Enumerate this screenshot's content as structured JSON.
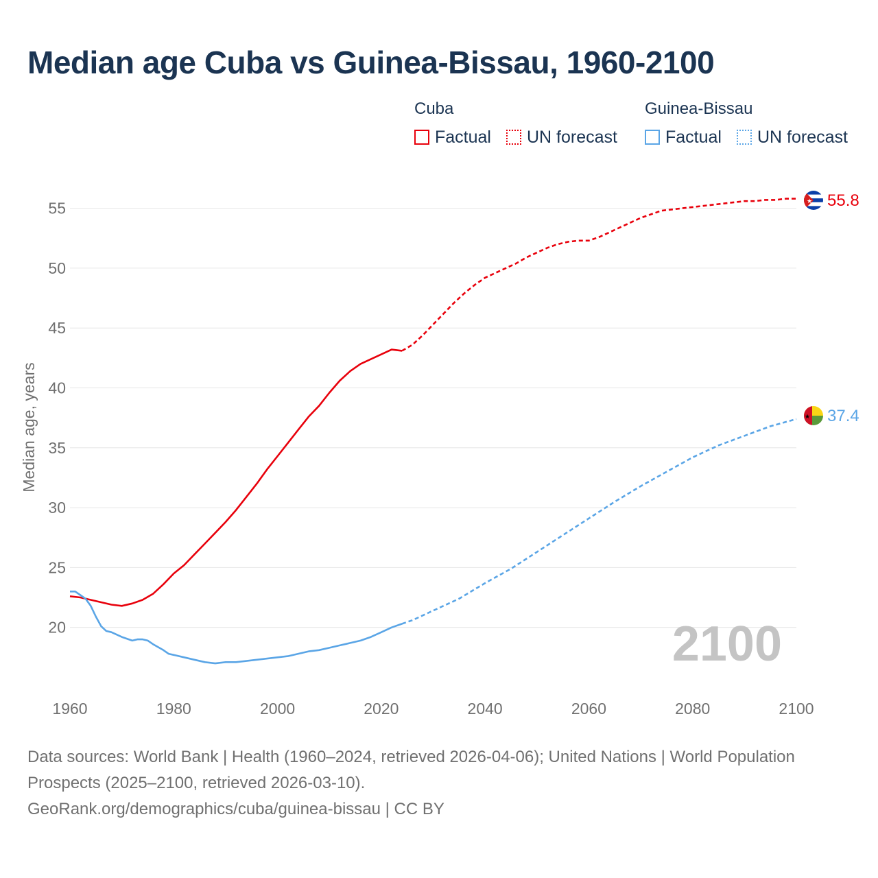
{
  "title": "Median age Cuba vs Guinea-Bissau, 1960-2100",
  "legend": {
    "groups": [
      {
        "name": "Cuba",
        "factual": "Factual",
        "forecast": "UN forecast",
        "color": "#e8000b"
      },
      {
        "name": "Guinea-Bissau",
        "factual": "Factual",
        "forecast": "UN forecast",
        "color": "#5aa5e6"
      }
    ]
  },
  "year_watermark": "2100",
  "footer": {
    "line1": "Data sources: World Bank | Health (1960–2024, retrieved 2026-04-06); United Nations | World Population Prospects (2025–2100, retrieved 2026-03-10).",
    "line2": "GeoRank.org/demographics/cuba/guinea-bissau | CC BY"
  },
  "chart_data": {
    "type": "line",
    "title": "Median age Cuba vs Guinea-Bissau, 1960-2100",
    "xlabel": "",
    "ylabel": "Median age, years",
    "xlim": [
      1960,
      2100
    ],
    "ylim": [
      15.8,
      57.5
    ],
    "x_ticks": [
      1960,
      1980,
      2000,
      2020,
      2040,
      2060,
      2080,
      2100
    ],
    "y_ticks": [
      20,
      25,
      30,
      35,
      40,
      45,
      50,
      55
    ],
    "factual_end_year": 2024,
    "series": [
      {
        "name": "Cuba",
        "color": "#e8000b",
        "end_label": "55.8",
        "flag_icon": "cuba-flag-icon",
        "points": [
          [
            1960,
            22.6
          ],
          [
            1962,
            22.5
          ],
          [
            1964,
            22.3
          ],
          [
            1966,
            22.1
          ],
          [
            1968,
            21.9
          ],
          [
            1970,
            21.8
          ],
          [
            1972,
            22.0
          ],
          [
            1974,
            22.3
          ],
          [
            1976,
            22.8
          ],
          [
            1978,
            23.6
          ],
          [
            1980,
            24.5
          ],
          [
            1982,
            25.2
          ],
          [
            1984,
            26.1
          ],
          [
            1986,
            27.0
          ],
          [
            1988,
            27.9
          ],
          [
            1990,
            28.8
          ],
          [
            1992,
            29.8
          ],
          [
            1994,
            30.9
          ],
          [
            1996,
            32.0
          ],
          [
            1998,
            33.2
          ],
          [
            2000,
            34.3
          ],
          [
            2002,
            35.4
          ],
          [
            2004,
            36.5
          ],
          [
            2006,
            37.6
          ],
          [
            2008,
            38.5
          ],
          [
            2010,
            39.6
          ],
          [
            2012,
            40.6
          ],
          [
            2014,
            41.4
          ],
          [
            2016,
            42.0
          ],
          [
            2018,
            42.4
          ],
          [
            2020,
            42.8
          ],
          [
            2022,
            43.2
          ],
          [
            2024,
            43.1
          ],
          [
            2026,
            43.6
          ],
          [
            2028,
            44.4
          ],
          [
            2030,
            45.3
          ],
          [
            2032,
            46.2
          ],
          [
            2034,
            47.1
          ],
          [
            2036,
            47.9
          ],
          [
            2038,
            48.6
          ],
          [
            2040,
            49.2
          ],
          [
            2042,
            49.6
          ],
          [
            2044,
            50.0
          ],
          [
            2046,
            50.4
          ],
          [
            2048,
            50.9
          ],
          [
            2050,
            51.3
          ],
          [
            2052,
            51.7
          ],
          [
            2054,
            52.0
          ],
          [
            2056,
            52.2
          ],
          [
            2058,
            52.3
          ],
          [
            2060,
            52.3
          ],
          [
            2062,
            52.6
          ],
          [
            2064,
            53.0
          ],
          [
            2066,
            53.4
          ],
          [
            2068,
            53.8
          ],
          [
            2070,
            54.2
          ],
          [
            2072,
            54.5
          ],
          [
            2074,
            54.8
          ],
          [
            2076,
            54.9
          ],
          [
            2078,
            55.0
          ],
          [
            2080,
            55.1
          ],
          [
            2082,
            55.2
          ],
          [
            2084,
            55.3
          ],
          [
            2086,
            55.4
          ],
          [
            2088,
            55.5
          ],
          [
            2090,
            55.6
          ],
          [
            2092,
            55.6
          ],
          [
            2094,
            55.7
          ],
          [
            2096,
            55.7
          ],
          [
            2098,
            55.8
          ],
          [
            2100,
            55.8
          ]
        ]
      },
      {
        "name": "Guinea-Bissau",
        "color": "#5aa5e6",
        "end_label": "37.4",
        "flag_icon": "guinea-bissau-flag-icon",
        "points": [
          [
            1960,
            23.0
          ],
          [
            1961,
            23.0
          ],
          [
            1962,
            22.7
          ],
          [
            1963,
            22.4
          ],
          [
            1964,
            21.8
          ],
          [
            1965,
            20.9
          ],
          [
            1966,
            20.1
          ],
          [
            1967,
            19.7
          ],
          [
            1968,
            19.6
          ],
          [
            1970,
            19.2
          ],
          [
            1972,
            18.9
          ],
          [
            1973,
            19.0
          ],
          [
            1974,
            19.0
          ],
          [
            1975,
            18.9
          ],
          [
            1976,
            18.6
          ],
          [
            1978,
            18.1
          ],
          [
            1979,
            17.8
          ],
          [
            1980,
            17.7
          ],
          [
            1982,
            17.5
          ],
          [
            1984,
            17.3
          ],
          [
            1986,
            17.1
          ],
          [
            1988,
            17.0
          ],
          [
            1990,
            17.1
          ],
          [
            1992,
            17.1
          ],
          [
            1994,
            17.2
          ],
          [
            1996,
            17.3
          ],
          [
            1998,
            17.4
          ],
          [
            2000,
            17.5
          ],
          [
            2002,
            17.6
          ],
          [
            2004,
            17.8
          ],
          [
            2006,
            18.0
          ],
          [
            2008,
            18.1
          ],
          [
            2010,
            18.3
          ],
          [
            2012,
            18.5
          ],
          [
            2014,
            18.7
          ],
          [
            2016,
            18.9
          ],
          [
            2018,
            19.2
          ],
          [
            2020,
            19.6
          ],
          [
            2022,
            20.0
          ],
          [
            2024,
            20.3
          ],
          [
            2026,
            20.6
          ],
          [
            2030,
            21.4
          ],
          [
            2035,
            22.4
          ],
          [
            2040,
            23.7
          ],
          [
            2045,
            24.9
          ],
          [
            2050,
            26.3
          ],
          [
            2055,
            27.7
          ],
          [
            2060,
            29.1
          ],
          [
            2065,
            30.5
          ],
          [
            2070,
            31.8
          ],
          [
            2075,
            33.0
          ],
          [
            2080,
            34.2
          ],
          [
            2085,
            35.2
          ],
          [
            2090,
            36.0
          ],
          [
            2095,
            36.8
          ],
          [
            2100,
            37.4
          ]
        ]
      }
    ]
  }
}
